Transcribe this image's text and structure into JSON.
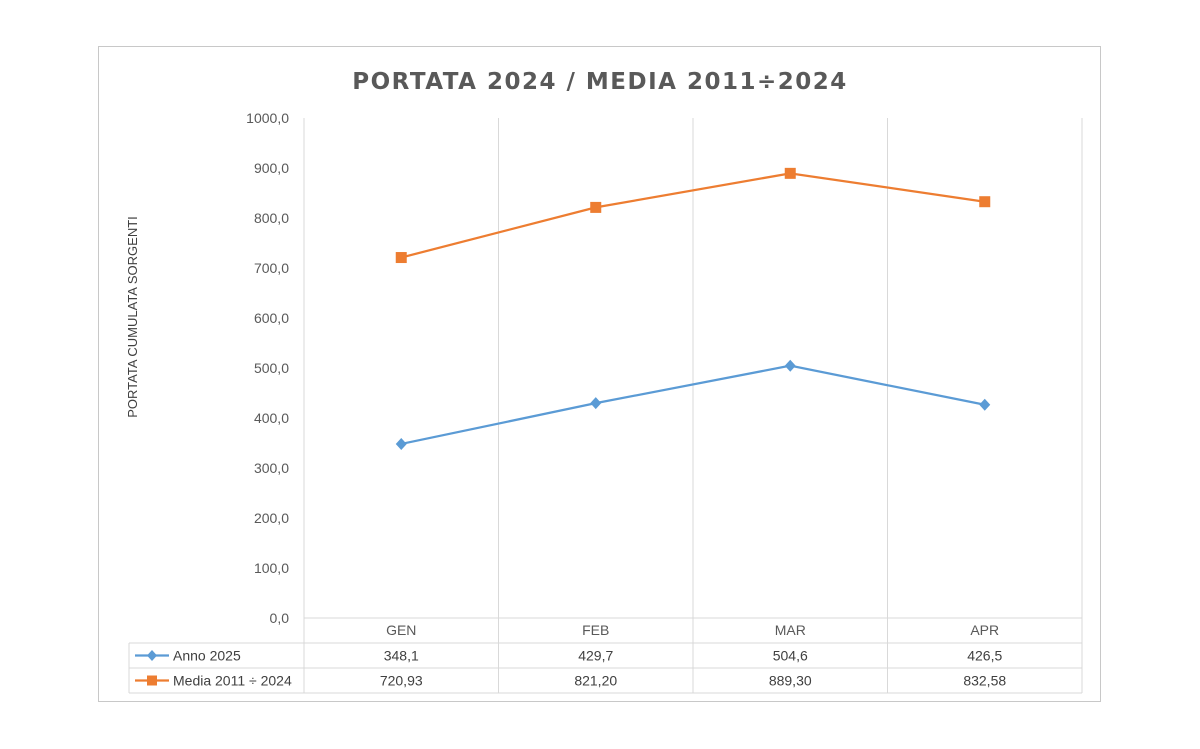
{
  "chart_data": {
    "type": "line",
    "title": "PORTATA  2024 / MEDIA 2011÷2024",
    "ylabel": "PORTATA CUMULATA SORGENTI",
    "xlabel": "",
    "categories": [
      "GEN",
      "FEB",
      "MAR",
      "APR"
    ],
    "ylim": [
      0,
      1000
    ],
    "yticks": [
      "0,0",
      "100,0",
      "200,0",
      "300,0",
      "400,0",
      "500,0",
      "600,0",
      "700,0",
      "800,0",
      "900,0",
      "1000,0"
    ],
    "grid": "vertical",
    "legend": "data-table",
    "series": [
      {
        "name": "Anno 2025",
        "color": "#5b9bd5",
        "marker": "diamond",
        "values": [
          348.1,
          429.7,
          504.6,
          426.5
        ],
        "labels": [
          "348,1",
          "429,7",
          "504,6",
          "426,5"
        ]
      },
      {
        "name": "Media 2011 ÷ 2024",
        "color": "#ed7d31",
        "marker": "square",
        "values": [
          720.93,
          821.2,
          889.3,
          832.58
        ],
        "labels": [
          "720,93",
          "821,20",
          "889,30",
          "832,58"
        ]
      }
    ]
  }
}
